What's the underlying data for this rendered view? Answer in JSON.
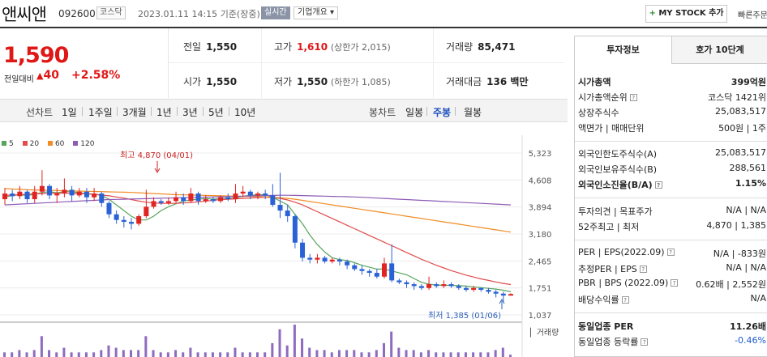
{
  "header": {
    "name": "앤씨앤",
    "code": "092600",
    "market": "코스닥",
    "datetime": "2023.01.11 14:15",
    "basis": "기준(장중)",
    "realtime": "실시간",
    "corp_overview": "기업개요",
    "mystock": "MY STOCK 추가",
    "quick": "빠른주문"
  },
  "price": {
    "current": "1,590",
    "change_label": "전일대비",
    "change": "40",
    "change_pct": "+2.58%"
  },
  "stats": {
    "prev_label": "전일",
    "prev": "1,550",
    "high_label": "고가",
    "high": "1,610",
    "high_sub": "(상한가 2,015)",
    "volume_label": "거래량",
    "volume": "85,471",
    "open_label": "시가",
    "open": "1,550",
    "low_label": "저가",
    "low": "1,550",
    "low_sub": "(하한가 1,085)",
    "amount_label": "거래대금",
    "amount": "136 백만"
  },
  "period": {
    "line_label": "선차트",
    "line_tabs": [
      "1일",
      "1주일",
      "3개월",
      "1년",
      "3년",
      "5년",
      "10년"
    ],
    "candle_label": "봉차트",
    "candle_tabs": [
      "일봉",
      "주봉",
      "월봉"
    ],
    "selected": "주봉"
  },
  "chart_data": {
    "type": "candlestick",
    "legend": [
      {
        "name": "5",
        "color": "#58a55c"
      },
      {
        "name": "20",
        "color": "#e24b4b"
      },
      {
        "name": "60",
        "color": "#f08c24"
      },
      {
        "name": "120",
        "color": "#8e5bb5"
      }
    ],
    "y_ticks": [
      "5,323",
      "4,608",
      "3,894",
      "3,180",
      "2,465",
      "1,751",
      "1,037"
    ],
    "ylim": [
      1037,
      5323
    ],
    "high_annotation": "최고 4,870 (04/01)",
    "low_annotation": "최저 1,385 (01/06)",
    "volume_label": "거래량",
    "candles": [
      [
        4100,
        4250,
        3950,
        4400
      ],
      [
        4250,
        4180,
        4050,
        4350
      ],
      [
        4180,
        4300,
        4100,
        4450
      ],
      [
        4300,
        4100,
        4000,
        4350
      ],
      [
        4100,
        4300,
        4000,
        4450
      ],
      [
        4300,
        4450,
        4200,
        4870
      ],
      [
        4450,
        4200,
        4100,
        4500
      ],
      [
        4200,
        4250,
        4000,
        4400
      ],
      [
        4250,
        4350,
        4150,
        4650
      ],
      [
        4350,
        4200,
        4050,
        4450
      ],
      [
        4200,
        4300,
        4150,
        4400
      ],
      [
        4300,
        4150,
        4000,
        4400
      ],
      [
        4150,
        4250,
        4050,
        4400
      ],
      [
        4250,
        4000,
        3900,
        4300
      ],
      [
        4000,
        3700,
        3600,
        4050
      ],
      [
        3700,
        3550,
        3450,
        3800
      ],
      [
        3550,
        3500,
        3350,
        3650
      ],
      [
        3500,
        3450,
        3300,
        3600
      ],
      [
        3450,
        3650,
        3400,
        3700
      ],
      [
        3650,
        3900,
        3600,
        4350
      ],
      [
        3900,
        4050,
        3850,
        4150
      ],
      [
        4050,
        4000,
        3950,
        4100
      ],
      [
        4000,
        4050,
        3950,
        4150
      ],
      [
        4050,
        4150,
        4000,
        4300
      ],
      [
        4150,
        4050,
        3950,
        4250
      ],
      [
        4050,
        4250,
        4000,
        4400
      ],
      [
        4250,
        4050,
        3950,
        4300
      ],
      [
        4050,
        4100,
        4000,
        4200
      ],
      [
        4100,
        4050,
        4000,
        4150
      ],
      [
        4050,
        4150,
        4000,
        4200
      ],
      [
        4150,
        4100,
        4050,
        4250
      ],
      [
        4100,
        4250,
        4000,
        4500
      ],
      [
        4250,
        4300,
        4150,
        4450
      ],
      [
        4300,
        4200,
        4100,
        4350
      ],
      [
        4200,
        4250,
        4100,
        4300
      ],
      [
        4250,
        4200,
        4100,
        4350
      ],
      [
        4200,
        3950,
        3900,
        4500
      ],
      [
        3950,
        3800,
        3600,
        4800
      ],
      [
        3800,
        3650,
        3500,
        3950
      ],
      [
        3650,
        2950,
        2800,
        3700
      ],
      [
        2950,
        2550,
        2450,
        3050
      ],
      [
        2550,
        2500,
        2400,
        2650
      ],
      [
        2500,
        2550,
        2400,
        2650
      ],
      [
        2550,
        2450,
        2400,
        2600
      ],
      [
        2450,
        2500,
        2400,
        2550
      ],
      [
        2500,
        2450,
        2350,
        2550
      ],
      [
        2450,
        2350,
        2250,
        2500
      ],
      [
        2350,
        2250,
        2200,
        2400
      ],
      [
        2250,
        2200,
        2100,
        2350
      ],
      [
        2200,
        2150,
        2050,
        2250
      ],
      [
        2150,
        2050,
        2000,
        2250
      ],
      [
        2050,
        2400,
        2000,
        2550
      ],
      [
        2400,
        1950,
        1900,
        2900
      ],
      [
        1950,
        1900,
        1850,
        2000
      ],
      [
        1900,
        1850,
        1750,
        1950
      ],
      [
        1850,
        1800,
        1700,
        1900
      ],
      [
        1800,
        1750,
        1700,
        1850
      ],
      [
        1750,
        1850,
        1700,
        2050
      ],
      [
        1850,
        1800,
        1750,
        1900
      ],
      [
        1800,
        1850,
        1750,
        1950
      ],
      [
        1850,
        1800,
        1750,
        1900
      ],
      [
        1800,
        1750,
        1700,
        1850
      ],
      [
        1750,
        1700,
        1650,
        1800
      ],
      [
        1700,
        1750,
        1650,
        1800
      ],
      [
        1750,
        1700,
        1650,
        1750
      ],
      [
        1700,
        1650,
        1600,
        1750
      ],
      [
        1650,
        1600,
        1500,
        1700
      ],
      [
        1600,
        1550,
        1385,
        1650
      ],
      [
        1550,
        1590,
        1550,
        1610
      ]
    ],
    "volume": [
      2,
      2,
      3,
      2,
      3,
      9,
      3,
      2,
      4,
      2,
      2,
      2,
      2,
      3,
      5,
      4,
      3,
      3,
      3,
      9,
      3,
      2,
      2,
      3,
      2,
      4,
      2,
      2,
      2,
      2,
      2,
      4,
      2,
      2,
      2,
      2,
      6,
      12,
      5,
      14,
      8,
      4,
      3,
      3,
      2,
      3,
      3,
      3,
      2,
      2,
      3,
      6,
      11,
      4,
      3,
      3,
      2,
      3,
      2,
      2,
      2,
      2,
      2,
      2,
      2,
      2,
      3,
      4,
      1
    ],
    "ma": {
      "5": [
        4150,
        4200,
        4220,
        4200,
        4230,
        4280,
        4300,
        4270,
        4300,
        4300,
        4270,
        4250,
        4230,
        4200,
        4100,
        3950,
        3800,
        3650,
        3550,
        3550,
        3650,
        3800,
        3900,
        3980,
        4050,
        4080,
        4100,
        4120,
        4100,
        4120,
        4130,
        4130,
        4180,
        4200,
        4220,
        4220,
        4150,
        4050,
        3950,
        3700,
        3450,
        3150,
        2900,
        2700,
        2550,
        2500,
        2480,
        2420,
        2350,
        2300,
        2250,
        2250,
        2200,
        2150,
        2100,
        2000,
        1900,
        1850,
        1830,
        1820,
        1820,
        1810,
        1800,
        1780,
        1760,
        1740,
        1720,
        1690,
        1650
      ],
      "20": [
        4200,
        4210,
        4220,
        4230,
        4240,
        4250,
        4260,
        4260,
        4260,
        4260,
        4250,
        4240,
        4230,
        4210,
        4190,
        4160,
        4130,
        4090,
        4050,
        4020,
        4000,
        3990,
        3990,
        3990,
        4000,
        4010,
        4030,
        4050,
        4070,
        4090,
        4100,
        4110,
        4120,
        4130,
        4140,
        4150,
        4140,
        4120,
        4080,
        4020,
        3950,
        3860,
        3770,
        3680,
        3590,
        3500,
        3410,
        3320,
        3230,
        3140,
        3050,
        2960,
        2870,
        2780,
        2690,
        2600,
        2510,
        2430,
        2350,
        2280,
        2210,
        2150,
        2090,
        2040,
        1990,
        1950,
        1910,
        1870,
        1840
      ],
      "60": [
        4380,
        4370,
        4360,
        4350,
        4345,
        4340,
        4335,
        4330,
        4325,
        4320,
        4315,
        4310,
        4305,
        4300,
        4295,
        4290,
        4285,
        4280,
        4270,
        4260,
        4250,
        4240,
        4230,
        4220,
        4215,
        4210,
        4205,
        4200,
        4195,
        4190,
        4185,
        4180,
        4175,
        4170,
        4165,
        4160,
        4150,
        4140,
        4120,
        4100,
        4070,
        4040,
        4010,
        3980,
        3950,
        3920,
        3890,
        3860,
        3830,
        3800,
        3770,
        3740,
        3710,
        3680,
        3650,
        3620,
        3590,
        3560,
        3530,
        3500,
        3470,
        3440,
        3410,
        3380,
        3350,
        3320,
        3290,
        3260,
        3230
      ],
      "120": [
        3950,
        3960,
        3970,
        3980,
        3990,
        4000,
        4010,
        4020,
        4030,
        4040,
        4050,
        4060,
        4070,
        4080,
        4090,
        4095,
        4100,
        4105,
        4110,
        4115,
        4120,
        4125,
        4130,
        4135,
        4140,
        4145,
        4150,
        4155,
        4160,
        4165,
        4170,
        4175,
        4180,
        4185,
        4190,
        4195,
        4200,
        4205,
        4205,
        4200,
        4195,
        4190,
        4185,
        4180,
        4175,
        4170,
        4165,
        4160,
        4150,
        4140,
        4130,
        4120,
        4110,
        4100,
        4090,
        4080,
        4070,
        4060,
        4050,
        4040,
        4030,
        4020,
        4010,
        4000,
        3990,
        3980,
        3970,
        3960,
        3950
      ]
    }
  },
  "right_panel": {
    "tab_invest": "투자정보",
    "tab_hoga": "호가 10단계",
    "market_cap_label": "시가총액",
    "market_cap": "399억원",
    "market_cap_rank_label": "시가총액순위",
    "market_cap_rank": "코스닥 1421위",
    "shares_label": "상장주식수",
    "shares": "25,083,517",
    "par_label": "액면가 | 매매단위",
    "par": "500원 | 1주",
    "foreign_limit_label": "외국인한도주식수(A)",
    "foreign_limit": "25,083,517",
    "foreign_hold_label": "외국인보유주식수(B)",
    "foreign_hold": "288,561",
    "foreign_ratio_label": "외국인소진율(B/A)",
    "foreign_ratio": "1.15%",
    "opinion_label": "투자의견 | 목표주가",
    "opinion": "N/A | N/A",
    "week52_label": "52주최고 | 최저",
    "week52": "4,870 | 1,385",
    "per_label": "PER | EPS(2022.09)",
    "per": "N/A | -833원",
    "est_per_label": "추정PER | EPS",
    "est_per": "N/A | N/A",
    "pbr_label": "PBR | BPS (2022.09)",
    "pbr": "0.62배 | 2,552원",
    "div_label": "배당수익률",
    "div": "N/A",
    "sector_per_label": "동일업종 PER",
    "sector_per": "11.26배",
    "sector_chg_label": "동일업종 등락률",
    "sector_chg": "-0.46%"
  }
}
